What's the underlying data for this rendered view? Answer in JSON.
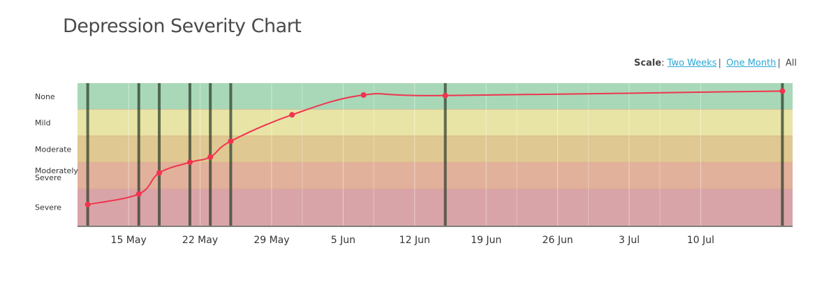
{
  "title": "Depression Severity Chart",
  "scale": {
    "label": "Scale",
    "options": [
      "Two Weeks",
      "One Month",
      "All"
    ],
    "selected": "All"
  },
  "chart_data": {
    "type": "line",
    "title": "Depression Severity Chart",
    "x_axis": {
      "type": "date",
      "range": [
        "2017-05-10",
        "2017-07-19"
      ],
      "tick_labels": [
        "15 May",
        "22 May",
        "29 May",
        "5 Jun",
        "12 Jun",
        "19 Jun",
        "26 Jun",
        "3 Jul",
        "10 Jul"
      ],
      "tick_dates": [
        "2017-05-15",
        "2017-05-22",
        "2017-05-29",
        "2017-06-05",
        "2017-06-12",
        "2017-06-19",
        "2017-06-26",
        "2017-07-03",
        "2017-07-10"
      ]
    },
    "y_axis": {
      "type": "categorical-bands",
      "range": [
        0,
        5.4
      ],
      "bands": [
        {
          "label": "None",
          "from": 4.4,
          "to": 5.4,
          "color": "#a8d8b8"
        },
        {
          "label": "Mild",
          "from": 3.4,
          "to": 4.4,
          "color": "#e8e4a6"
        },
        {
          "label": "Moderate",
          "from": 2.4,
          "to": 3.4,
          "color": "#dfc892"
        },
        {
          "label": "Moderately Severe",
          "from": 1.4,
          "to": 2.4,
          "color": "#e2b19c"
        },
        {
          "label": "Severe",
          "from": 0,
          "to": 1.4,
          "color": "#d9a4a7"
        }
      ],
      "labels": [
        "None",
        "Mild",
        "Moderate",
        "Moderately Severe",
        "Severe"
      ]
    },
    "series": [
      {
        "color": "#f0344f",
        "points": [
          {
            "x": "2017-05-11",
            "y": 0.8
          },
          {
            "x": "2017-05-16",
            "y": 1.2
          },
          {
            "x": "2017-05-18",
            "y": 2.0
          },
          {
            "x": "2017-05-21",
            "y": 2.4
          },
          {
            "x": "2017-05-23",
            "y": 2.6
          },
          {
            "x": "2017-05-25",
            "y": 3.2
          },
          {
            "x": "2017-05-31",
            "y": 4.2
          },
          {
            "x": "2017-06-07",
            "y": 4.95
          },
          {
            "x": "2017-06-15",
            "y": 4.93
          },
          {
            "x": "2017-07-18",
            "y": 5.1
          }
        ]
      }
    ],
    "event_markers": [
      "2017-05-11",
      "2017-05-16",
      "2017-05-18",
      "2017-05-21",
      "2017-05-23",
      "2017-05-25",
      "2017-06-15",
      "2017-07-18"
    ],
    "grid": true,
    "legend": "none"
  }
}
